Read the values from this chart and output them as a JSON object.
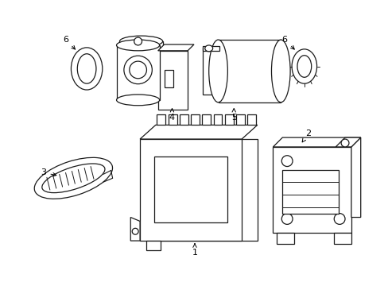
{
  "bg_color": "#ffffff",
  "line_color": "#1a1a1a",
  "fig_width": 4.89,
  "fig_height": 3.6,
  "dpi": 100
}
